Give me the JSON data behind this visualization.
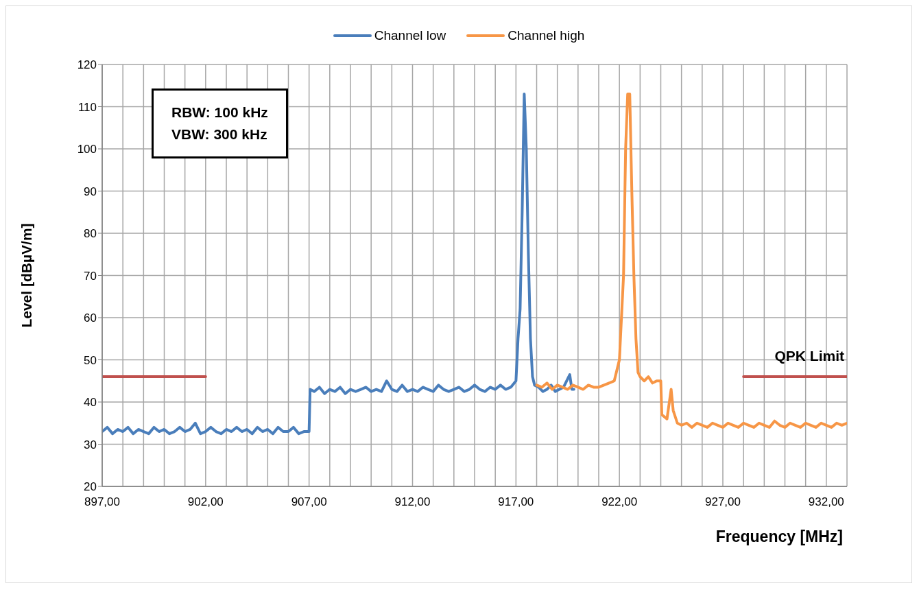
{
  "chart_data": {
    "type": "line",
    "xlabel": "Frequency [MHz]",
    "ylabel": "Level [dBµV/m]",
    "annotations": [
      "RBW: 100 kHz",
      "VBW: 300 kHz",
      {
        "text": "QPK Limit",
        "x": 933,
        "y": 46
      }
    ],
    "xlim": [
      897,
      933
    ],
    "ylim": [
      20,
      120
    ],
    "xticks": [
      {
        "value": 897,
        "label": "897,00"
      },
      {
        "value": 898,
        "label": null
      },
      {
        "value": 899,
        "label": null
      },
      {
        "value": 900,
        "label": null
      },
      {
        "value": 901,
        "label": null
      },
      {
        "value": 902,
        "label": "902,00"
      },
      {
        "value": 903,
        "label": null
      },
      {
        "value": 904,
        "label": null
      },
      {
        "value": 905,
        "label": null
      },
      {
        "value": 906,
        "label": null
      },
      {
        "value": 907,
        "label": "907,00"
      },
      {
        "value": 908,
        "label": null
      },
      {
        "value": 909,
        "label": null
      },
      {
        "value": 910,
        "label": null
      },
      {
        "value": 911,
        "label": null
      },
      {
        "value": 912,
        "label": "912,00"
      },
      {
        "value": 913,
        "label": null
      },
      {
        "value": 914,
        "label": null
      },
      {
        "value": 915,
        "label": null
      },
      {
        "value": 916,
        "label": null
      },
      {
        "value": 917,
        "label": "917,00"
      },
      {
        "value": 918,
        "label": null
      },
      {
        "value": 919,
        "label": null
      },
      {
        "value": 920,
        "label": null
      },
      {
        "value": 921,
        "label": null
      },
      {
        "value": 922,
        "label": "922,00"
      },
      {
        "value": 923,
        "label": null
      },
      {
        "value": 924,
        "label": null
      },
      {
        "value": 925,
        "label": null
      },
      {
        "value": 926,
        "label": null
      },
      {
        "value": 927,
        "label": "927,00"
      },
      {
        "value": 928,
        "label": null
      },
      {
        "value": 929,
        "label": null
      },
      {
        "value": 930,
        "label": null
      },
      {
        "value": 931,
        "label": null
      },
      {
        "value": 932,
        "label": "932,00"
      },
      {
        "value": 933,
        "label": null
      }
    ],
    "yticks": [
      20,
      30,
      40,
      50,
      60,
      70,
      80,
      90,
      100,
      110,
      120
    ],
    "grid": true,
    "legend": "top",
    "marker": "none",
    "line_style": "solid",
    "series": [
      {
        "name": "Channel low",
        "color": "#4a7ebb",
        "x": [
          897,
          897.25,
          897.5,
          897.75,
          898,
          898.25,
          898.5,
          898.75,
          899,
          899.25,
          899.5,
          899.75,
          900,
          900.25,
          900.5,
          900.75,
          901,
          901.25,
          901.5,
          901.75,
          902,
          902.25,
          902.5,
          902.75,
          903,
          903.25,
          903.5,
          903.75,
          904,
          904.25,
          904.5,
          904.75,
          905,
          905.25,
          905.5,
          905.75,
          906,
          906.25,
          906.5,
          906.75,
          907,
          907.05,
          907.25,
          907.5,
          907.75,
          908,
          908.25,
          908.5,
          908.75,
          909,
          909.25,
          909.5,
          909.75,
          910,
          910.25,
          910.5,
          910.75,
          911,
          911.25,
          911.5,
          911.75,
          912,
          912.25,
          912.5,
          912.75,
          913,
          913.25,
          913.5,
          913.75,
          914,
          914.25,
          914.5,
          914.75,
          915,
          915.25,
          915.5,
          915.75,
          916,
          916.25,
          916.5,
          916.75,
          917,
          917.1,
          917.2,
          917.3,
          917.4,
          917.5,
          917.6,
          917.7,
          917.8,
          917.9,
          918.1,
          918.3,
          918.5,
          918.7,
          918.9,
          919.1,
          919.3,
          919.6,
          919.7,
          919.8
        ],
        "values": [
          33,
          34,
          32.5,
          33.5,
          33,
          34,
          32.5,
          33.5,
          33,
          32.5,
          34,
          33,
          33.5,
          32.5,
          33,
          34,
          33,
          33.5,
          35,
          32.5,
          33,
          34,
          33,
          32.5,
          33.5,
          33,
          34,
          33,
          33.5,
          32.5,
          34,
          33,
          33.5,
          32.5,
          34,
          33,
          33,
          34,
          32.5,
          33,
          33,
          43,
          42.5,
          43.5,
          42,
          43,
          42.5,
          43.5,
          42,
          43,
          42.5,
          43,
          43.5,
          42.5,
          43,
          42.5,
          45,
          43,
          42.5,
          44,
          42.5,
          43,
          42.5,
          43.5,
          43,
          42.5,
          44,
          43,
          42.5,
          43,
          43.5,
          42.5,
          43,
          44,
          43,
          42.5,
          43.5,
          43,
          44,
          43,
          43.5,
          45,
          55,
          62,
          85,
          113,
          100,
          75,
          55,
          46,
          44,
          43.5,
          42.5,
          43,
          44,
          42.5,
          43,
          43.5,
          46.5,
          43,
          43
        ]
      },
      {
        "name": "Channel high",
        "color": "#f79646",
        "x": [
          918,
          918.25,
          918.5,
          918.75,
          919,
          919.25,
          919.5,
          919.75,
          920,
          920.25,
          920.5,
          920.75,
          921,
          921.25,
          921.5,
          921.75,
          922,
          922.1,
          922.2,
          922.3,
          922.4,
          922.5,
          922.6,
          922.7,
          922.8,
          922.9,
          923,
          923.2,
          923.4,
          923.6,
          923.8,
          924,
          924.05,
          924.3,
          924.5,
          924.6,
          924.8,
          925,
          925.25,
          925.5,
          925.75,
          926,
          926.25,
          926.5,
          926.75,
          927,
          927.25,
          927.5,
          927.75,
          928,
          928.25,
          928.5,
          928.75,
          929,
          929.25,
          929.5,
          929.75,
          930,
          930.25,
          930.5,
          930.75,
          931,
          931.25,
          931.5,
          931.75,
          932,
          932.25,
          932.5,
          932.75,
          933
        ],
        "values": [
          44,
          43.5,
          44.5,
          43,
          44,
          43.5,
          43,
          44,
          43.5,
          43,
          44,
          43.5,
          43.5,
          44,
          44.5,
          45,
          50,
          60,
          70,
          100,
          113,
          113,
          90,
          70,
          55,
          47,
          46,
          45,
          46,
          44.5,
          45,
          45,
          37,
          36,
          43,
          38,
          35,
          34.5,
          35,
          34,
          35,
          34.5,
          34,
          35,
          34.5,
          34,
          35,
          34.5,
          34,
          35,
          34.5,
          34,
          35,
          34.5,
          34,
          35.5,
          34.5,
          34,
          35,
          34.5,
          34,
          35,
          34.5,
          34,
          35,
          34.5,
          34,
          35,
          34.5,
          35
        ]
      },
      {
        "color": "#c0504d",
        "x": [
          897,
          902,
          915,
          928,
          933
        ],
        "values": [
          46,
          46,
          null,
          46,
          46
        ]
      }
    ]
  }
}
